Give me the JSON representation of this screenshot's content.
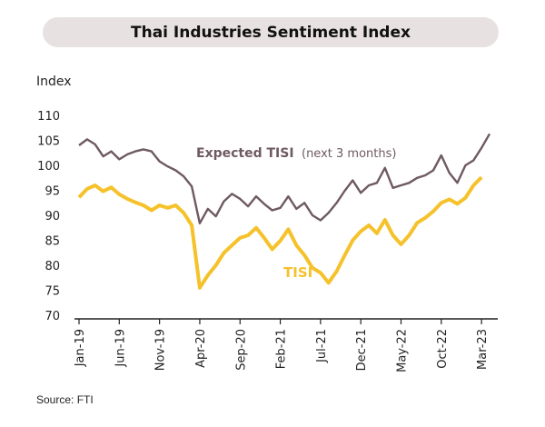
{
  "title": "Thai Industries Sentiment Index",
  "source": "Source: FTI",
  "colors": {
    "expected": "#6e5a5f",
    "tisi": "#f5c22b",
    "title_bg": "#e8e1e1"
  },
  "chart_data": {
    "type": "line",
    "ylabel": "Index",
    "ylim": [
      70,
      110
    ],
    "yticks": [
      70,
      75,
      80,
      85,
      90,
      95,
      100,
      105,
      110
    ],
    "grid": false,
    "x_tick_labels": [
      "Jan-19",
      "Jun-19",
      "Nov-19",
      "Apr-20",
      "Sep-20",
      "Feb-21",
      "Jul-21",
      "Dec-21",
      "May-22",
      "Oct-22",
      "Mar-23"
    ],
    "x_tick_indices": [
      0,
      5,
      10,
      15,
      20,
      25,
      30,
      35,
      40,
      45,
      50
    ],
    "series": [
      {
        "name": "Expected TISI",
        "label_suffix": "(next 3 months)",
        "color": "#6e5a5f",
        "values": [
          104,
          105.2,
          104.2,
          101.8,
          102.8,
          101.2,
          102.2,
          102.8,
          103.2,
          102.8,
          100.8,
          99.8,
          99.0,
          97.8,
          95.8,
          88.4,
          91.3,
          89.8,
          92.8,
          94.3,
          93.3,
          91.8,
          93.8,
          92.3,
          91.0,
          91.5,
          93.8,
          91.3,
          92.5,
          90.0,
          89.0,
          90.5,
          92.5,
          94.9,
          97.0,
          94.5,
          96.0,
          96.5,
          99.5,
          95.5,
          96.0,
          96.5,
          97.5,
          98.0,
          99.0,
          102.0,
          98.5,
          96.5,
          100.0,
          101.0,
          103.5,
          106.3
        ]
      },
      {
        "name": "TISI",
        "color": "#f5c22b",
        "values": [
          93.6,
          95.3,
          96.0,
          94.8,
          95.6,
          94.2,
          93.3,
          92.6,
          92.0,
          91.0,
          92.0,
          91.5,
          92.0,
          90.5,
          88.0,
          75.5,
          78.0,
          80.0,
          82.5,
          84.0,
          85.5,
          86.0,
          87.5,
          85.5,
          83.2,
          84.9,
          87.2,
          84.0,
          82.0,
          79.5,
          78.5,
          76.5,
          78.8,
          82.0,
          85.0,
          86.8,
          88.0,
          86.4,
          89.1,
          86.0,
          84.2,
          86.0,
          88.5,
          89.5,
          90.8,
          92.5,
          93.2,
          92.3,
          93.5,
          96.0,
          97.6
        ]
      }
    ]
  }
}
